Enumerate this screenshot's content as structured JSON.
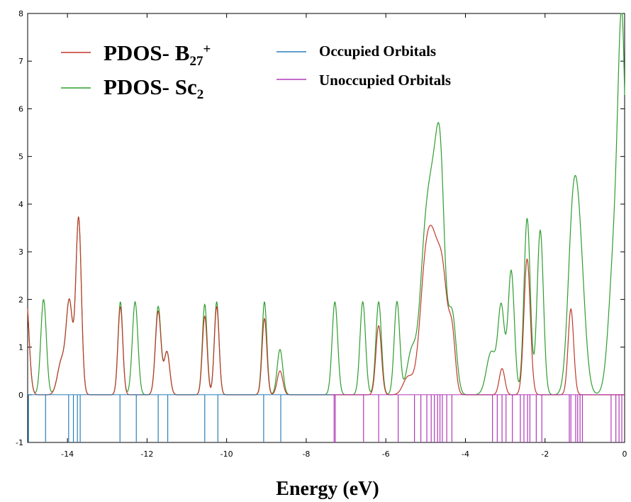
{
  "chart_data": {
    "type": "line",
    "xlabel": "Energy (eV)",
    "ylabel": "",
    "xlim": [
      -15,
      0
    ],
    "ylim": [
      -1,
      8
    ],
    "xticks": [
      -14,
      -12,
      -10,
      -8,
      -6,
      -4,
      -2,
      0
    ],
    "yticks": [
      -1,
      0,
      1,
      2,
      3,
      4,
      5,
      6,
      7,
      8
    ],
    "grid": false,
    "legend": [
      {
        "text": "PDOS- B",
        "sub": "27",
        "sup": "+",
        "color": "#c0392b"
      },
      {
        "text": "PDOS- Sc",
        "sub": "2",
        "sup": "",
        "color": "#2e9d2e"
      },
      {
        "text": "Occupied Orbitals",
        "color": "#2a7fb8"
      },
      {
        "text": "Unoccupied Orbitals",
        "color": "#b03ab8"
      }
    ],
    "series": [
      {
        "name": "PDOS- B27+",
        "color": "#c0392b",
        "peaks": [
          [
            -15.05,
            2.2,
            0.08
          ],
          [
            -14.15,
            0.7,
            0.1
          ],
          [
            -13.95,
            1.9,
            0.08
          ],
          [
            -13.72,
            3.7,
            0.07
          ],
          [
            -12.67,
            1.85,
            0.06
          ],
          [
            -11.72,
            1.75,
            0.07
          ],
          [
            -11.5,
            0.9,
            0.07
          ],
          [
            -10.55,
            1.65,
            0.06
          ],
          [
            -10.25,
            1.85,
            0.06
          ],
          [
            -9.05,
            1.6,
            0.06
          ],
          [
            -8.66,
            0.5,
            0.07
          ],
          [
            -6.18,
            1.45,
            0.07
          ],
          [
            -5.45,
            0.35,
            0.12
          ],
          [
            -5.05,
            0.7,
            0.12
          ],
          [
            -4.85,
            3.3,
            0.2
          ],
          [
            -4.55,
            1.6,
            0.12
          ],
          [
            -4.33,
            1.1,
            0.08
          ],
          [
            -3.08,
            0.55,
            0.07
          ],
          [
            -2.45,
            2.85,
            0.08
          ],
          [
            -1.35,
            1.8,
            0.07
          ]
        ]
      },
      {
        "name": "PDOS- Sc2",
        "color": "#2e9d2e",
        "peaks": [
          [
            -15.05,
            2.2,
            0.08
          ],
          [
            -14.6,
            2.0,
            0.07
          ],
          [
            -14.15,
            0.7,
            0.1
          ],
          [
            -13.95,
            1.9,
            0.08
          ],
          [
            -13.72,
            3.7,
            0.07
          ],
          [
            -12.67,
            1.95,
            0.06
          ],
          [
            -12.3,
            1.95,
            0.07
          ],
          [
            -11.72,
            1.85,
            0.07
          ],
          [
            -11.5,
            0.9,
            0.07
          ],
          [
            -10.55,
            1.9,
            0.06
          ],
          [
            -10.25,
            1.95,
            0.06
          ],
          [
            -9.05,
            1.95,
            0.06
          ],
          [
            -8.66,
            0.95,
            0.07
          ],
          [
            -7.28,
            1.95,
            0.07
          ],
          [
            -6.58,
            1.95,
            0.07
          ],
          [
            -6.18,
            1.95,
            0.07
          ],
          [
            -5.72,
            1.95,
            0.07
          ],
          [
            -5.35,
            0.9,
            0.12
          ],
          [
            -5.05,
            1.6,
            0.12
          ],
          [
            -4.8,
            4.4,
            0.18
          ],
          [
            -4.62,
            2.6,
            0.1
          ],
          [
            -4.33,
            1.6,
            0.1
          ],
          [
            -3.35,
            0.9,
            0.12
          ],
          [
            -3.1,
            1.8,
            0.08
          ],
          [
            -2.85,
            2.6,
            0.08
          ],
          [
            -2.45,
            3.7,
            0.08
          ],
          [
            -2.12,
            3.45,
            0.08
          ],
          [
            -1.32,
            2.6,
            0.12
          ],
          [
            -1.15,
            3.1,
            0.14
          ],
          [
            -0.25,
            3.0,
            0.14
          ],
          [
            -0.06,
            6.8,
            0.1
          ]
        ]
      }
    ],
    "occupied_orbitals": [
      -14.98,
      -14.55,
      -13.97,
      -13.85,
      -13.75,
      -13.68,
      -12.68,
      -12.27,
      -11.72,
      -11.48,
      -10.55,
      -10.22,
      -9.07,
      -8.64
    ],
    "unoccupied_orbitals": [
      -7.3,
      -7.27,
      -6.56,
      -6.18,
      -5.69,
      -5.28,
      -5.12,
      -4.97,
      -4.86,
      -4.78,
      -4.7,
      -4.64,
      -4.58,
      -4.47,
      -4.34,
      -3.32,
      -3.2,
      -3.08,
      -2.98,
      -2.82,
      -2.62,
      -2.53,
      -2.44,
      -2.38,
      -2.22,
      -2.08,
      -1.39,
      -1.35,
      -1.23,
      -1.18,
      -1.12,
      -1.06,
      -0.34,
      -0.22,
      -0.14,
      -0.07
    ]
  }
}
